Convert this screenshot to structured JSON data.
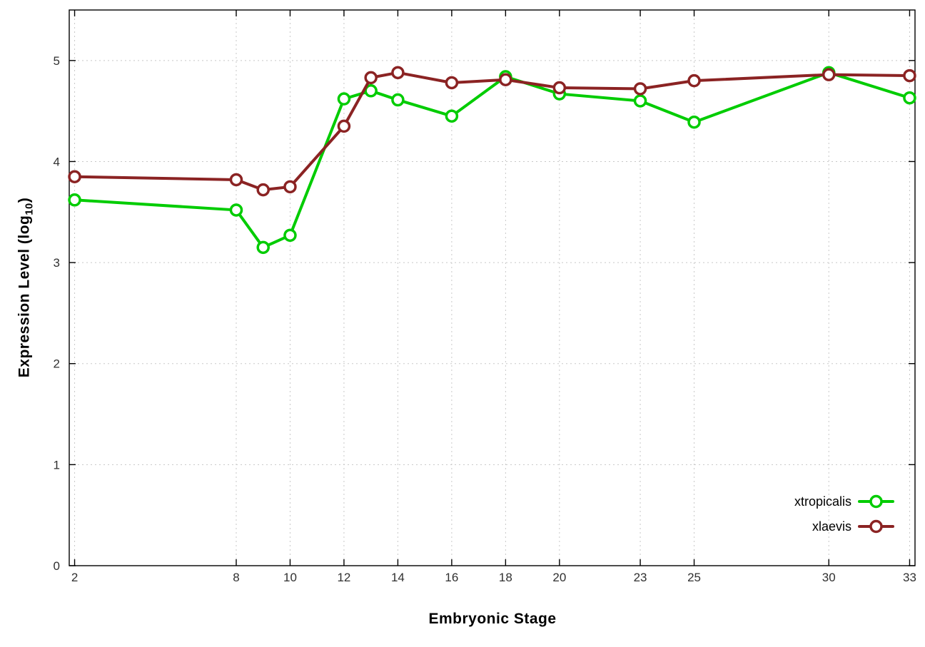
{
  "chart_data": {
    "type": "line",
    "title": "",
    "xlabel": "Embryonic Stage",
    "ylabel": "Expression Level (log10)",
    "ylabel_parts": {
      "pre": "Expression Level (log",
      "sub": "10",
      "post": ")"
    },
    "x": [
      2,
      8,
      9,
      10,
      12,
      13,
      14,
      16,
      18,
      20,
      23,
      25,
      30,
      33
    ],
    "x_tick_labels": [
      "2",
      "8",
      "10",
      "12",
      "14",
      "16",
      "18",
      "20",
      "23",
      "25",
      "30",
      "33"
    ],
    "x_tick_values": [
      2,
      8,
      10,
      12,
      14,
      16,
      18,
      20,
      23,
      25,
      30,
      33
    ],
    "y_tick_labels": [
      "0",
      "1",
      "2",
      "3",
      "4",
      "5"
    ],
    "y_tick_values": [
      0,
      1,
      2,
      3,
      4,
      5
    ],
    "xlim": [
      1.8,
      33.2
    ],
    "ylim": [
      0,
      5.5
    ],
    "grid": true,
    "legend_position": "bottom-right",
    "series": [
      {
        "name": "xtropicalis",
        "color": "#00cc00",
        "values": [
          3.62,
          3.52,
          3.15,
          3.27,
          4.62,
          4.7,
          4.61,
          4.45,
          4.84,
          4.67,
          4.6,
          4.39,
          4.88,
          4.63
        ]
      },
      {
        "name": "xlaevis",
        "color": "#8b2323",
        "values": [
          3.85,
          3.82,
          3.72,
          3.75,
          4.35,
          4.83,
          4.88,
          4.78,
          4.81,
          4.73,
          4.72,
          4.8,
          4.86,
          4.85
        ]
      }
    ],
    "marker": "open-circle",
    "marker_fill": "#ffffff",
    "grid_color": "#c8c8c8",
    "border_color": "#000000",
    "tick_text_color": "#303030"
  }
}
